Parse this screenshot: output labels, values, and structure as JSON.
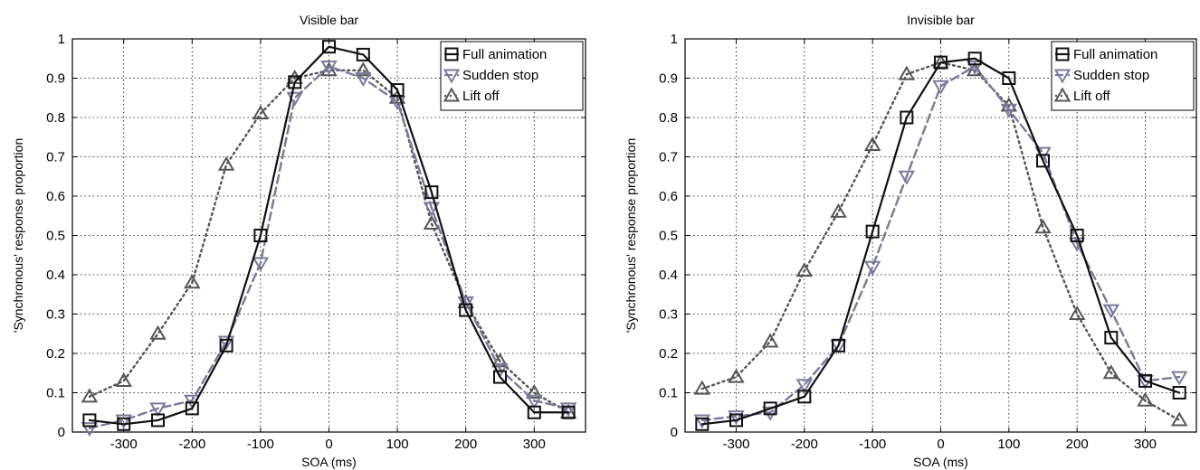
{
  "chart_data": [
    {
      "type": "line",
      "title": "Visible bar",
      "xlabel": "SOA (ms)",
      "ylabel": "'Synchronous' response proportion",
      "xlim": [
        -375,
        375
      ],
      "ylim": [
        0,
        1
      ],
      "xticks": [
        -300,
        -200,
        -100,
        0,
        100,
        200,
        300
      ],
      "xtick_labels": [
        "-300",
        "-200",
        "-100",
        "0",
        "100",
        "200",
        "300"
      ],
      "yticks": [
        0,
        0.1,
        0.2,
        0.3,
        0.4,
        0.5,
        0.6,
        0.7,
        0.8,
        0.9,
        1
      ],
      "ytick_labels": [
        "0",
        "0.1",
        "0.2",
        "0.3",
        "0.4",
        "0.5",
        "0.6",
        "0.7",
        "0.8",
        "0.9",
        "1"
      ],
      "grid": true,
      "legend": "top-right",
      "x": [
        -350,
        -300,
        -250,
        -200,
        -150,
        -100,
        -50,
        0,
        50,
        100,
        150,
        200,
        250,
        300,
        350
      ],
      "series": [
        {
          "name": "Full animation",
          "marker": "square",
          "line": "solid",
          "color": "#111111",
          "values": [
            0.03,
            0.02,
            0.03,
            0.06,
            0.22,
            0.5,
            0.89,
            0.98,
            0.96,
            0.87,
            0.61,
            0.31,
            0.14,
            0.05,
            0.05
          ]
        },
        {
          "name": "Sudden stop",
          "marker": "triangle-down",
          "line": "dashed",
          "color": "#7a7a9a",
          "values": [
            0.01,
            0.03,
            0.06,
            0.08,
            0.23,
            0.43,
            0.85,
            0.93,
            0.9,
            0.84,
            0.57,
            0.33,
            0.16,
            0.08,
            0.06
          ]
        },
        {
          "name": "Lift off",
          "marker": "triangle-up",
          "line": "dotted",
          "color": "#555555",
          "values": [
            0.09,
            0.13,
            0.25,
            0.38,
            0.68,
            0.81,
            0.9,
            0.92,
            0.92,
            0.85,
            0.53,
            0.33,
            0.18,
            0.1,
            0.05
          ]
        }
      ]
    },
    {
      "type": "line",
      "title": "Invisible bar",
      "xlabel": "SOA (ms)",
      "ylabel": "'Synchronous' response proportion",
      "xlim": [
        -375,
        375
      ],
      "ylim": [
        0,
        1
      ],
      "xticks": [
        -300,
        -200,
        -100,
        0,
        100,
        200,
        300
      ],
      "xtick_labels": [
        "-300",
        "-200",
        "-100",
        "0",
        "100",
        "200",
        "300"
      ],
      "yticks": [
        0,
        0.1,
        0.2,
        0.3,
        0.4,
        0.5,
        0.6,
        0.7,
        0.8,
        0.9,
        1
      ],
      "ytick_labels": [
        "0",
        "0.1",
        "0.2",
        "0.3",
        "0.4",
        "0.5",
        "0.6",
        "0.7",
        "0.8",
        "0.9",
        "1"
      ],
      "grid": true,
      "legend": "top-right",
      "x": [
        -350,
        -300,
        -250,
        -200,
        -150,
        -100,
        -50,
        0,
        50,
        100,
        150,
        200,
        250,
        300,
        350
      ],
      "series": [
        {
          "name": "Full animation",
          "marker": "square",
          "line": "solid",
          "color": "#111111",
          "values": [
            0.02,
            0.03,
            0.06,
            0.09,
            0.22,
            0.51,
            0.8,
            0.94,
            0.95,
            0.9,
            0.69,
            0.5,
            0.24,
            0.13,
            0.1
          ]
        },
        {
          "name": "Sudden stop",
          "marker": "triangle-down",
          "line": "dashed",
          "color": "#7a7a9a",
          "values": [
            0.03,
            0.04,
            0.05,
            0.12,
            0.22,
            0.42,
            0.65,
            0.88,
            0.93,
            0.82,
            0.71,
            0.48,
            0.31,
            0.13,
            0.14
          ]
        },
        {
          "name": "Lift off",
          "marker": "triangle-up",
          "line": "dotted",
          "color": "#555555",
          "values": [
            0.11,
            0.14,
            0.23,
            0.41,
            0.56,
            0.73,
            0.91,
            0.94,
            0.92,
            0.83,
            0.52,
            0.3,
            0.15,
            0.08,
            0.03
          ]
        }
      ]
    }
  ]
}
